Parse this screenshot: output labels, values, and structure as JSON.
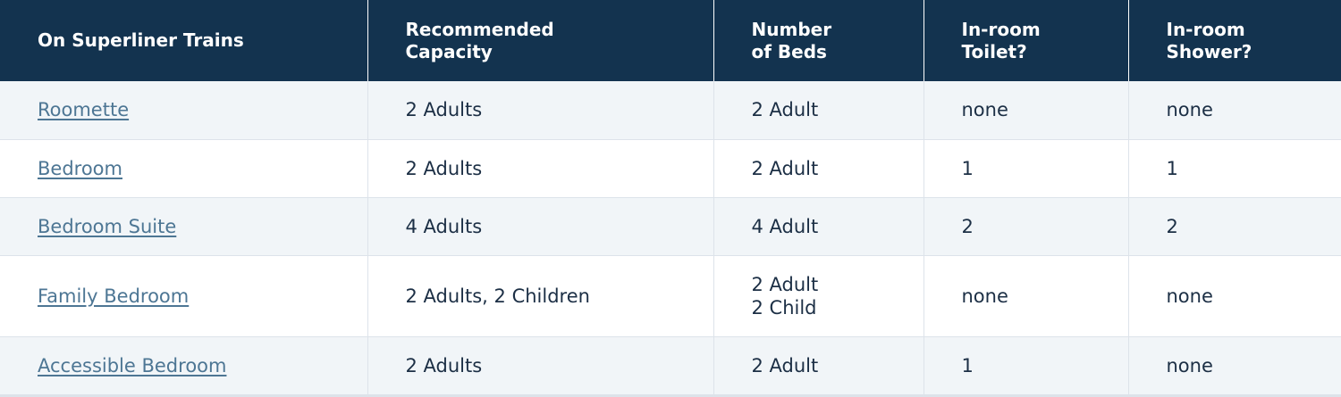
{
  "table": {
    "headers": [
      [
        "On Superliner Trains"
      ],
      [
        "Recommended",
        "Capacity"
      ],
      [
        "Number",
        "of Beds"
      ],
      [
        "In-room",
        "Toilet?"
      ],
      [
        "In-room",
        "Shower?"
      ]
    ],
    "rows": [
      {
        "room": "Roomette",
        "capacity": "2 Adults",
        "beds": [
          "2 Adult"
        ],
        "toilet": "none",
        "shower": "none"
      },
      {
        "room": "Bedroom",
        "capacity": "2 Adults",
        "beds": [
          "2 Adult"
        ],
        "toilet": "1",
        "shower": "1"
      },
      {
        "room": "Bedroom Suite",
        "capacity": "4 Adults",
        "beds": [
          "4 Adult"
        ],
        "toilet": "2",
        "shower": "2"
      },
      {
        "room": "Family Bedroom",
        "capacity": "2 Adults, 2 Children",
        "beds": [
          "2 Adult",
          "2 Child"
        ],
        "toilet": "none",
        "shower": "none"
      },
      {
        "room": "Accessible Bedroom",
        "capacity": "2 Adults",
        "beds": [
          "2 Adult"
        ],
        "toilet": "1",
        "shower": "none"
      }
    ]
  },
  "colors": {
    "header_bg": "#13334f",
    "header_text": "#ffffff",
    "row_alt_bg": "#f1f5f8",
    "link": "#4d7694",
    "cell_text": "#1c2f45"
  }
}
